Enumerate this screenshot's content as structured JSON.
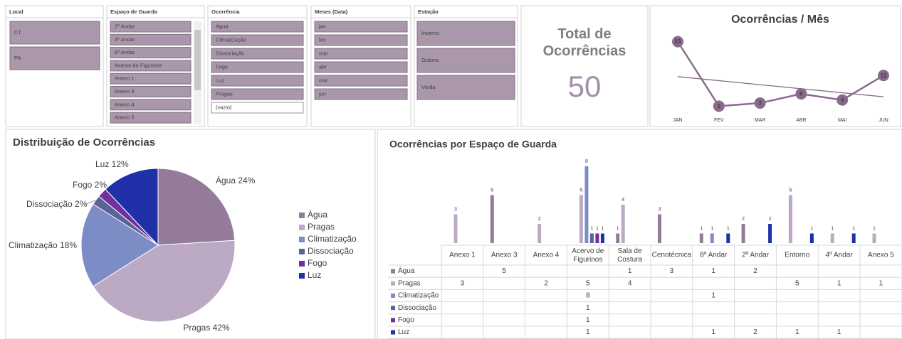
{
  "slicers": [
    {
      "title": "Local",
      "items": [
        "CT",
        "PA"
      ]
    },
    {
      "title": "Espaço de Guarda",
      "items": [
        "2º Andar",
        "4º Andar",
        "8º Andar",
        "Acervo de Figurinos",
        "Anexo 1",
        "Anexo 3",
        "Anexo 4",
        "Anexo 5"
      ]
    },
    {
      "title": "Ocorrência",
      "items": [
        "Água",
        "Climatização",
        "Dissociação",
        "Fogo",
        "Luz",
        "Pragas",
        "(vazio)"
      ]
    },
    {
      "title": "Meses (Data)",
      "items": [
        "jan",
        "fev",
        "mar",
        "abr",
        "mai",
        "jun"
      ]
    },
    {
      "title": "Estação",
      "items": [
        "Inverno",
        "Outono",
        "Verão"
      ]
    }
  ],
  "kpi": {
    "title": "Total de Ocorrências",
    "value": 50
  },
  "chart_data": [
    {
      "type": "line",
      "title": "Ocorrências / Mês",
      "categories": [
        "JAN",
        "FEV",
        "MAR",
        "ABR",
        "MAI",
        "JUN"
      ],
      "values": [
        23,
        2,
        3,
        6,
        4,
        12
      ],
      "color": "#8a6a8c",
      "ylim": [
        0,
        25
      ],
      "trendline": true
    },
    {
      "type": "pie",
      "title": "Distribuição de Ocorrências",
      "categories": [
        "Água",
        "Pragas",
        "Climatização",
        "Dissociação",
        "Fogo",
        "Luz"
      ],
      "values": [
        24,
        42,
        18,
        2,
        2,
        12
      ],
      "value_labels": [
        "Água 24%",
        "Pragas 42%",
        "Climatização 18%",
        "Dissociação 2%",
        "Fogo 2%",
        "Luz 12%"
      ],
      "colors": [
        "#957b9a",
        "#bcaac4",
        "#7c8cc4",
        "#5a6296",
        "#7030a0",
        "#1f30a8"
      ],
      "legend": "right"
    },
    {
      "type": "bar",
      "title": "Ocorrências por Espaço de Guarda",
      "categories": [
        "Anexo 1",
        "Anexo 3",
        "Anexo 4",
        "Acervo de Figurinos",
        "Sala de Costura",
        "Cenotécnica",
        "8º Andar",
        "2º Andar",
        "Entorno",
        "4º Andar",
        "Anexo 5"
      ],
      "ylim": [
        0,
        8
      ],
      "series": [
        {
          "name": "Água",
          "color": "#957b9a",
          "values": [
            null,
            5,
            null,
            null,
            1,
            3,
            1,
            2,
            null,
            null,
            null
          ]
        },
        {
          "name": "Pragas",
          "color": "#bcaac4",
          "values": [
            3,
            null,
            2,
            5,
            4,
            null,
            null,
            null,
            5,
            1,
            1
          ]
        },
        {
          "name": "Climatização",
          "color": "#7c8cc4",
          "values": [
            null,
            null,
            null,
            8,
            null,
            null,
            1,
            null,
            null,
            null,
            null
          ]
        },
        {
          "name": "Dissociação",
          "color": "#5a6296",
          "values": [
            null,
            null,
            null,
            1,
            null,
            null,
            null,
            null,
            null,
            null,
            null
          ]
        },
        {
          "name": "Fogo",
          "color": "#7030a0",
          "values": [
            null,
            null,
            null,
            1,
            null,
            null,
            null,
            null,
            null,
            null,
            null
          ]
        },
        {
          "name": "Luz",
          "color": "#1f30a8",
          "values": [
            null,
            null,
            null,
            1,
            null,
            null,
            1,
            2,
            1,
            1,
            null
          ]
        }
      ]
    }
  ]
}
